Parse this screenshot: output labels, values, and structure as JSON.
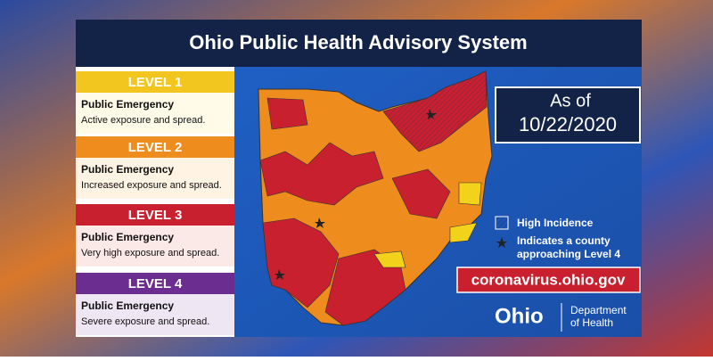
{
  "title": "Ohio Public Health Advisory System",
  "levels": [
    {
      "label": "LEVEL 1",
      "heading": "Public Emergency",
      "description": "Active exposure and spread."
    },
    {
      "label": "LEVEL 2",
      "heading": "Public Emergency",
      "description": "Increased exposure and spread."
    },
    {
      "label": "LEVEL 3",
      "heading": "Public Emergency",
      "description": "Very high exposure and spread."
    },
    {
      "label": "LEVEL 4",
      "heading": "Public Emergency",
      "description": "Severe exposure and spread."
    }
  ],
  "as_of": {
    "label": "As of",
    "date": "10/22/2020"
  },
  "legend": [
    {
      "label": "High Incidence"
    },
    {
      "label": [
        "Indicates a county",
        "approaching Level 4"
      ]
    }
  ],
  "url": "coronavirus.ohio.gov",
  "logo": {
    "word": "Ohio",
    "department": [
      "Department",
      "of Health"
    ]
  }
}
